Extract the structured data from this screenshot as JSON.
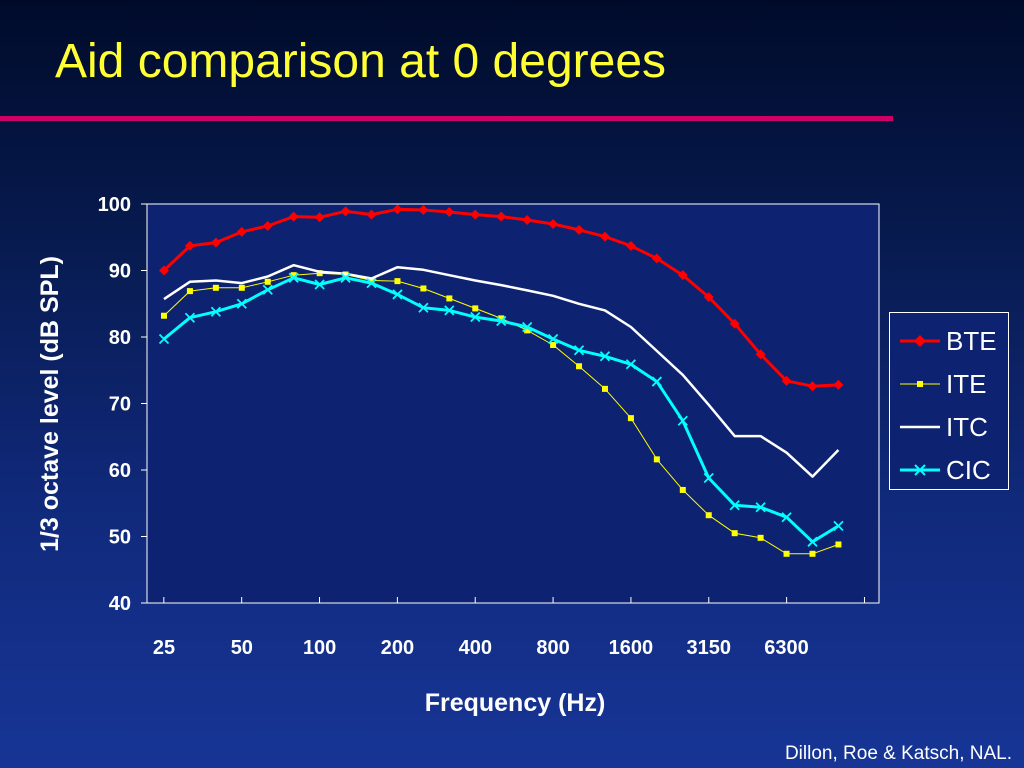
{
  "slide": {
    "title": "Aid comparison at 0 degrees",
    "credit": "Dillon, Roe & Katsch, NAL."
  },
  "chart_data": {
    "type": "line",
    "title": "",
    "xlabel": "Frequency (Hz)",
    "ylabel": "1/3 octave level (dB SPL)",
    "ylim": [
      40,
      100
    ],
    "yticks": [
      40,
      50,
      60,
      70,
      80,
      90,
      100
    ],
    "x_tick_labels": [
      "25",
      "50",
      "100",
      "200",
      "400",
      "800",
      "1600",
      "3150",
      "6300"
    ],
    "x_points": [
      "25",
      "31.5",
      "40",
      "50",
      "63",
      "80",
      "100",
      "125",
      "160",
      "200",
      "250",
      "315",
      "400",
      "500",
      "630",
      "800",
      "1000",
      "1250",
      "1600",
      "2000",
      "2500",
      "3150",
      "4000",
      "5000",
      "6300",
      "8000",
      "10000"
    ],
    "legend_position": "right",
    "grid": false,
    "series": [
      {
        "name": "BTE",
        "color": "#ff0000",
        "marker": "diamond",
        "line_width": 3,
        "values": [
          90,
          93.7,
          94.2,
          95.8,
          96.7,
          98.1,
          98.0,
          98.9,
          98.4,
          99.2,
          99.1,
          98.8,
          98.4,
          98.1,
          97.6,
          97.0,
          96.1,
          95.1,
          93.7,
          91.8,
          89.3,
          86.0,
          82.0,
          77.4,
          73.4,
          72.6,
          72.8
        ]
      },
      {
        "name": "ITE",
        "color": "#ffff00",
        "marker": "square",
        "line_width": 1,
        "values": [
          83.2,
          86.9,
          87.4,
          87.4,
          88.3,
          89.3,
          89.6,
          89.4,
          88.5,
          88.4,
          87.3,
          85.8,
          84.3,
          82.8,
          81.0,
          78.8,
          75.6,
          72.2,
          67.8,
          61.6,
          57.0,
          53.2,
          50.5,
          49.8,
          47.4,
          47.4,
          48.8
        ]
      },
      {
        "name": "ITC",
        "color": "#ffffff",
        "marker": "none",
        "line_width": 2.5,
        "values": [
          85.7,
          88.3,
          88.5,
          88.1,
          89.1,
          90.8,
          89.8,
          89.5,
          88.8,
          90.5,
          90.1,
          89.3,
          88.5,
          87.8,
          87.0,
          86.2,
          85.0,
          84.0,
          81.5,
          77.9,
          74.3,
          69.8,
          65.1,
          65.1,
          62.6,
          59.0,
          63.0
        ]
      },
      {
        "name": "CIC",
        "color": "#00ffff",
        "marker": "x",
        "line_width": 3,
        "values": [
          79.7,
          82.9,
          83.8,
          85.0,
          87.1,
          88.9,
          87.9,
          88.9,
          88.1,
          86.4,
          84.4,
          84.0,
          83.0,
          82.4,
          81.5,
          79.7,
          78.0,
          77.1,
          75.9,
          73.3,
          67.4,
          58.8,
          54.7,
          54.4,
          52.9,
          49.2,
          51.6
        ]
      }
    ]
  }
}
